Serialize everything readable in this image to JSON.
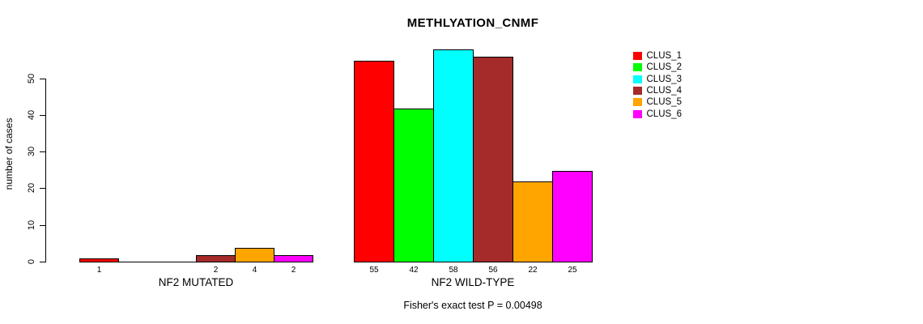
{
  "chart_data": {
    "type": "bar",
    "title": "METHLYATION_CNMF",
    "ylabel": "number of cases",
    "annotation": "Fisher's exact test P = 0.00498",
    "yticks": [
      0,
      10,
      20,
      30,
      40,
      50
    ],
    "ylim": [
      0,
      58
    ],
    "grid": false,
    "legend_position": "right-outside",
    "background": "#ffffff",
    "axis_color": "#000000",
    "groups": [
      {
        "label": "NF2 MUTATED",
        "values": [
          1,
          0,
          0,
          2,
          4,
          2
        ],
        "bar_labels": [
          "1",
          "",
          "",
          "2",
          "4",
          "2"
        ]
      },
      {
        "label": "NF2 WILD-TYPE",
        "values": [
          55,
          42,
          58,
          56,
          22,
          25
        ],
        "bar_labels": [
          "55",
          "42",
          "58",
          "56",
          "22",
          "25"
        ]
      }
    ],
    "legend": [
      {
        "label": "CLUS_1",
        "color": "#FF0000"
      },
      {
        "label": "CLUS_2",
        "color": "#00FF00"
      },
      {
        "label": "CLUS_3",
        "color": "#00FFFF"
      },
      {
        "label": "CLUS_4",
        "color": "#A52A2A"
      },
      {
        "label": "CLUS_5",
        "color": "#FFA500"
      },
      {
        "label": "CLUS_6",
        "color": "#FF00FF"
      }
    ]
  }
}
